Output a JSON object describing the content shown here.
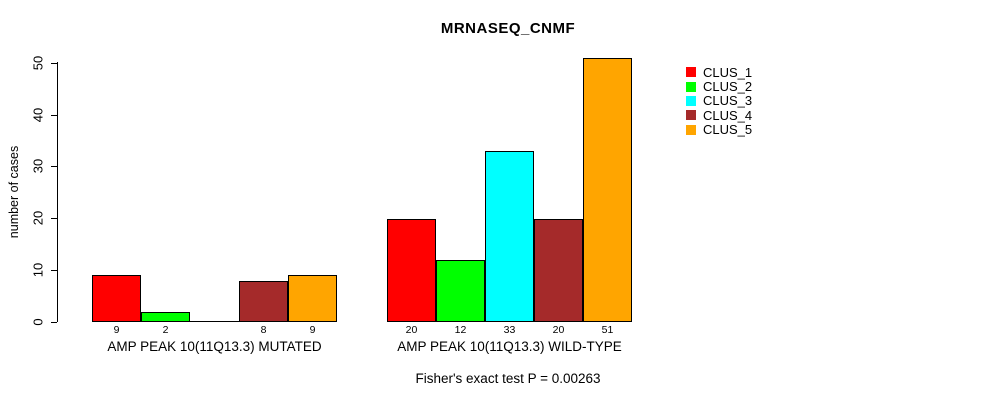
{
  "chart_data": {
    "type": "bar",
    "title": "MRNASEQ_CNMF",
    "xlabel": "",
    "ylabel": "number of cases",
    "annotation": "Fisher's exact test P = 0.00263",
    "categories": [
      "AMP PEAK 10(11Q13.3) MUTATED",
      "AMP PEAK 10(11Q13.3) WILD-TYPE"
    ],
    "series": [
      {
        "name": "CLUS_1",
        "color": "#ff0000",
        "values": [
          9,
          20
        ]
      },
      {
        "name": "CLUS_2",
        "color": "#00ff00",
        "values": [
          2,
          12
        ]
      },
      {
        "name": "CLUS_3",
        "color": "#00ffff",
        "values": [
          0,
          33
        ]
      },
      {
        "name": "CLUS_4",
        "color": "#a52a2a",
        "values": [
          8,
          20
        ]
      },
      {
        "name": "CLUS_5",
        "color": "#ffa500",
        "values": [
          9,
          51
        ]
      }
    ],
    "y_ticks": [
      0,
      10,
      20,
      30,
      40,
      50
    ],
    "ylim": [
      0,
      50
    ],
    "grid": false,
    "legend_position": "right",
    "bar_border_color": "#000000",
    "background_color": "#ffffff"
  }
}
